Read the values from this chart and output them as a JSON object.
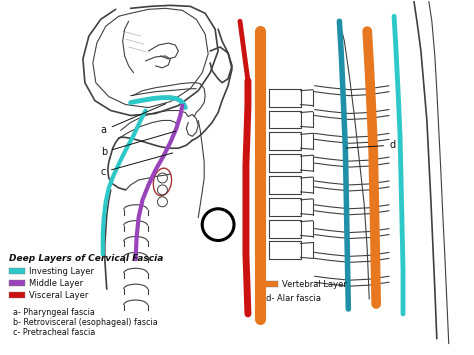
{
  "bg_color": "#f0ede8",
  "legend_title": "Deep Layers of Cervical Fascia",
  "legend_items": [
    {
      "label": "Investing Layer",
      "color": "#2ec8c8"
    },
    {
      "label": "Middle Layer",
      "color": "#9944bb"
    },
    {
      "label": "Visceral Layer",
      "color": "#cc1111"
    }
  ],
  "legend_items_right": [
    {
      "label": "Vertebral Layer",
      "color": "#e87820"
    },
    {
      "label": "d- Alar fascia",
      "color": "#2090a8"
    }
  ],
  "annotations_left": [
    "a- Pharyngeal fascia",
    "b- Retrovisceral (esophageal) fascia",
    "c- Pretracheal fascia"
  ],
  "outline_color": "#404040",
  "annotation_color": "#111111",
  "investing_color": "#2ec8c8",
  "middle_color": "#9944bb",
  "visceral_color": "#cc1111",
  "vertebral_color": "#e87820",
  "alar_color": "#2090a8",
  "alar2_color": "#e8c820"
}
